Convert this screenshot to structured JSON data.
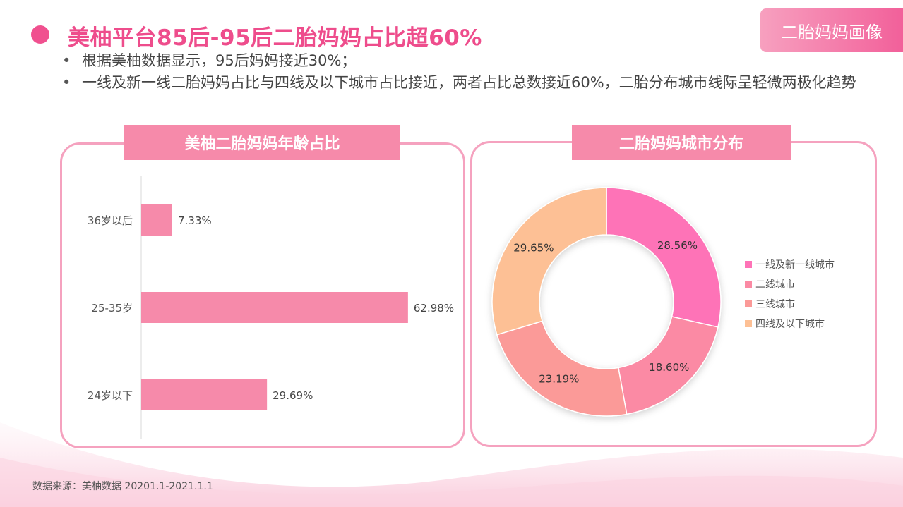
{
  "header": {
    "title": "美柚平台85后-95后二胎妈妈占比超60%",
    "tag": "二胎妈妈画像",
    "bullets": [
      "根据美柚数据显示，95后妈妈接近30%；",
      "一线及新一线二胎妈妈占比与四线及以下城市占比接近，两者占比总数接近60%，二胎分布城市线际呈轻微两极化趋势"
    ]
  },
  "left_panel": {
    "title": "美柚二胎妈妈年龄占比"
  },
  "right_panel": {
    "title": "二胎妈妈城市分布"
  },
  "source": "数据来源：美柚数据 20201.1-2021.1.1",
  "colors": {
    "accent": "#ee4d8c",
    "bar": "#f68aaa",
    "panel_border": "#f5a2bf"
  },
  "chart_data": [
    {
      "type": "bar",
      "orientation": "horizontal",
      "title": "美柚二胎妈妈年龄占比",
      "categories": [
        "36岁以后",
        "25-35岁",
        "24岁以下"
      ],
      "values": [
        7.33,
        62.98,
        29.69
      ],
      "labels": [
        "7.33%",
        "62.98%",
        "29.69%"
      ],
      "unit": "%",
      "xlim": [
        0,
        70
      ],
      "grid": false,
      "color": "#f68aaa"
    },
    {
      "type": "pie",
      "donut": true,
      "title": "二胎妈妈城市分布",
      "categories": [
        "一线及新一线城市",
        "二线城市",
        "三线城市",
        "四线及以下城市"
      ],
      "values": [
        28.56,
        18.6,
        23.19,
        29.65
      ],
      "labels": [
        "28.56%",
        "18.60%",
        "23.19%",
        "29.65%"
      ],
      "colors": [
        "#fe73b7",
        "#fb8aa4",
        "#fb9a98",
        "#fdc095"
      ],
      "legend_position": "right"
    }
  ]
}
